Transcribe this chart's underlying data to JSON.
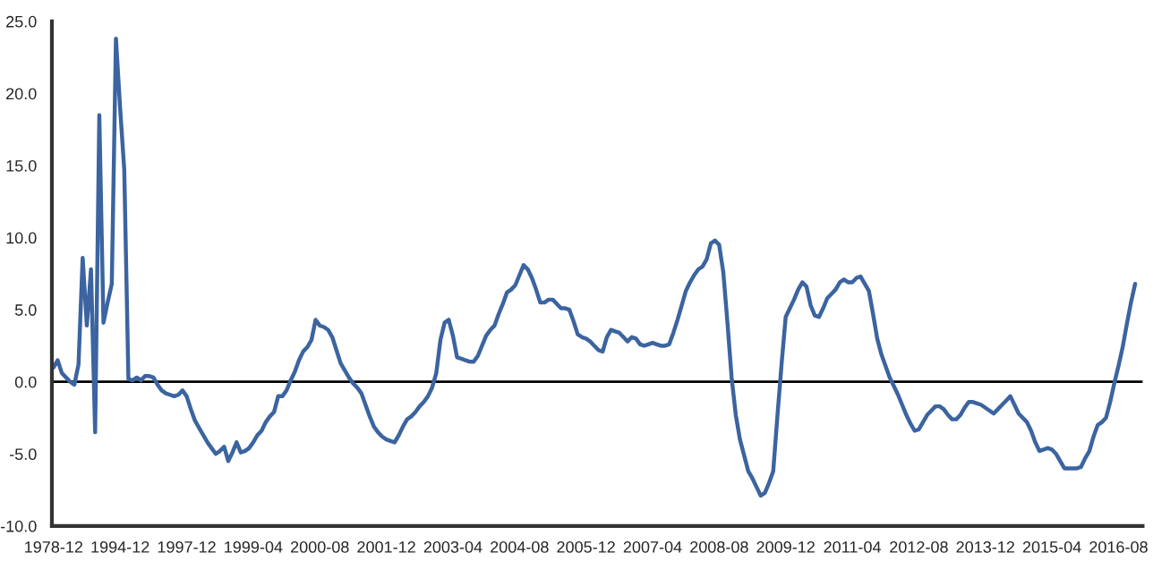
{
  "chart_data": {
    "type": "line",
    "categories": [
      "1978-12",
      null,
      null,
      null,
      null,
      null,
      null,
      null,
      null,
      null,
      null,
      null,
      null,
      null,
      null,
      null,
      "1994-12",
      null,
      null,
      null,
      null,
      null,
      null,
      null,
      null,
      null,
      null,
      null,
      null,
      null,
      null,
      null,
      "1997-12",
      null,
      null,
      null,
      null,
      null,
      null,
      null,
      null,
      null,
      null,
      null,
      null,
      null,
      null,
      null,
      "1999-04",
      null,
      null,
      null,
      null,
      null,
      null,
      null,
      null,
      null,
      null,
      null,
      null,
      null,
      null,
      null,
      "2000-08",
      null,
      null,
      null,
      null,
      null,
      null,
      null,
      null,
      null,
      null,
      null,
      null,
      null,
      null,
      null,
      "2001-12",
      null,
      null,
      null,
      null,
      null,
      null,
      null,
      null,
      null,
      null,
      null,
      null,
      null,
      null,
      null,
      "2003-04",
      null,
      null,
      null,
      null,
      null,
      null,
      null,
      null,
      null,
      null,
      null,
      null,
      null,
      null,
      null,
      "2004-08",
      null,
      null,
      null,
      null,
      null,
      null,
      null,
      null,
      null,
      null,
      null,
      null,
      null,
      null,
      null,
      "2005-12",
      null,
      null,
      null,
      null,
      null,
      null,
      null,
      null,
      null,
      null,
      null,
      null,
      null,
      null,
      null,
      "2007-04",
      null,
      null,
      null,
      null,
      null,
      null,
      null,
      null,
      null,
      null,
      null,
      null,
      null,
      null,
      null,
      "2008-08",
      null,
      null,
      null,
      null,
      null,
      null,
      null,
      null,
      null,
      null,
      null,
      null,
      null,
      null,
      null,
      "2009-12",
      null,
      null,
      null,
      null,
      null,
      null,
      null,
      null,
      null,
      null,
      null,
      null,
      null,
      null,
      null,
      "2011-04",
      null,
      null,
      null,
      null,
      null,
      null,
      null,
      null,
      null,
      null,
      null,
      null,
      null,
      null,
      null,
      "2012-08",
      null,
      null,
      null,
      null,
      null,
      null,
      null,
      null,
      null,
      null,
      null,
      null,
      null,
      null,
      null,
      "2013-12",
      null,
      null,
      null,
      null,
      null,
      null,
      null,
      null,
      null,
      null,
      null,
      null,
      null,
      null,
      null,
      "2015-04",
      null,
      null,
      null,
      null,
      null,
      null,
      null,
      null,
      null,
      null,
      null,
      null,
      null,
      null,
      null,
      "2016-08",
      null,
      null,
      null,
      null
    ],
    "series": [
      {
        "color": "#3b64a0",
        "values": [
          1.0,
          1.5,
          0.6,
          0.3,
          0.0,
          -0.2,
          1.2,
          8.6,
          3.9,
          7.8,
          -3.5,
          18.5,
          4.1,
          5.5,
          6.8,
          23.8,
          19.0,
          14.7,
          0.2,
          0.1,
          0.3,
          0.1,
          0.4,
          0.4,
          0.3,
          -0.2,
          -0.6,
          -0.8,
          -0.9,
          -1.0,
          -0.9,
          -0.6,
          -1.0,
          -1.9,
          -2.7,
          -3.2,
          -3.7,
          -4.2,
          -4.6,
          -5.0,
          -4.8,
          -4.5,
          -5.5,
          -4.9,
          -4.2,
          -4.9,
          -4.8,
          -4.6,
          -4.2,
          -3.7,
          -3.4,
          -2.8,
          -2.4,
          -2.1,
          -1.0,
          -1.0,
          -0.6,
          0.1,
          0.7,
          1.5,
          2.1,
          2.4,
          2.9,
          4.3,
          3.9,
          3.8,
          3.6,
          3.1,
          2.2,
          1.3,
          0.8,
          0.3,
          -0.1,
          -0.4,
          -0.8,
          -1.6,
          -2.4,
          -3.1,
          -3.5,
          -3.8,
          -4.0,
          -4.1,
          -4.2,
          -3.7,
          -3.1,
          -2.6,
          -2.4,
          -2.1,
          -1.7,
          -1.4,
          -1.0,
          -0.4,
          0.6,
          2.9,
          4.1,
          4.3,
          3.2,
          1.7,
          1.6,
          1.5,
          1.4,
          1.4,
          1.8,
          2.5,
          3.2,
          3.6,
          3.9,
          4.7,
          5.4,
          6.2,
          6.4,
          6.7,
          7.4,
          8.1,
          7.8,
          7.2,
          6.4,
          5.5,
          5.5,
          5.7,
          5.7,
          5.4,
          5.1,
          5.1,
          5.0,
          4.2,
          3.3,
          3.1,
          3.0,
          2.8,
          2.5,
          2.2,
          2.1,
          3.1,
          3.6,
          3.5,
          3.4,
          3.1,
          2.8,
          3.1,
          3.0,
          2.6,
          2.5,
          2.6,
          2.7,
          2.6,
          2.5,
          2.5,
          2.6,
          3.4,
          4.3,
          5.3,
          6.3,
          6.9,
          7.4,
          7.8,
          8.0,
          8.5,
          9.6,
          9.8,
          9.5,
          7.6,
          4.1,
          0.3,
          -2.3,
          -4.0,
          -5.1,
          -6.2,
          -6.7,
          -7.3,
          -7.9,
          -7.7,
          -7.0,
          -6.2,
          -2.4,
          1.2,
          4.5,
          5.1,
          5.7,
          6.4,
          6.9,
          6.6,
          5.3,
          4.6,
          4.5,
          5.1,
          5.8,
          6.1,
          6.4,
          6.9,
          7.1,
          6.9,
          6.9,
          7.2,
          7.3,
          6.8,
          6.3,
          4.7,
          3.0,
          1.9,
          1.1,
          0.3,
          -0.3,
          -0.9,
          -1.6,
          -2.3,
          -2.9,
          -3.4,
          -3.3,
          -2.8,
          -2.3,
          -2.0,
          -1.7,
          -1.7,
          -1.9,
          -2.3,
          -2.6,
          -2.6,
          -2.3,
          -1.8,
          -1.4,
          -1.4,
          -1.5,
          -1.6,
          -1.8,
          -2.0,
          -2.2,
          -1.9,
          -1.6,
          -1.3,
          -1.0,
          -1.6,
          -2.2,
          -2.5,
          -2.8,
          -3.4,
          -4.2,
          -4.8,
          -4.7,
          -4.6,
          -4.7,
          -5.0,
          -5.5,
          -6.0,
          -6.0,
          -6.0,
          -6.0,
          -5.9,
          -5.3,
          -4.8,
          -3.8,
          -3.0,
          -2.8,
          -2.5,
          -1.4,
          -0.1,
          1.1,
          2.4,
          4.0,
          5.5,
          6.8
        ]
      }
    ],
    "ylim": [
      -10,
      25
    ],
    "yticks": [
      {
        "value": -10,
        "label": "-10.0"
      },
      {
        "value": -5,
        "label": "-5.0"
      },
      {
        "value": 0,
        "label": "0.0"
      },
      {
        "value": 5,
        "label": "5.0"
      },
      {
        "value": 10,
        "label": "10.0"
      },
      {
        "value": 15,
        "label": "15.0"
      },
      {
        "value": 20,
        "label": "20.0"
      },
      {
        "value": 25,
        "label": "25.0"
      }
    ],
    "ref_lines": [
      {
        "axis": "y",
        "value": 0,
        "color": "#000000"
      }
    ],
    "grid": false,
    "marker": "none",
    "line_style": "solid"
  }
}
